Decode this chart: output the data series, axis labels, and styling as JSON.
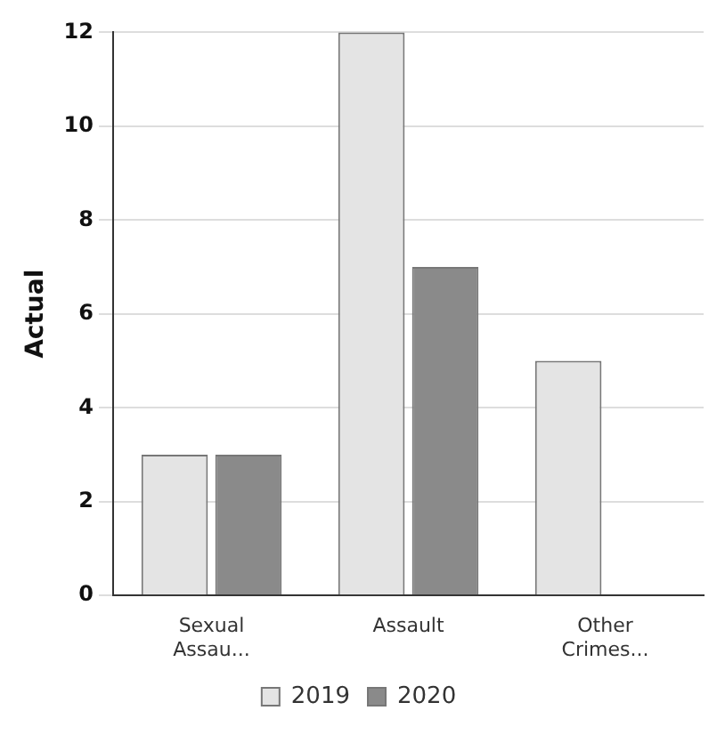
{
  "chart_data": {
    "type": "bar",
    "ylabel": "Actual",
    "categories": [
      "Sexual Assau...",
      "Assault",
      "Other Crimes..."
    ],
    "series": [
      {
        "name": "2019",
        "color": "#e4e4e4",
        "values": [
          3,
          12,
          5
        ]
      },
      {
        "name": "2020",
        "color": "#8a8a8a",
        "values": [
          3,
          7,
          0
        ]
      }
    ],
    "ylim": [
      0,
      12
    ],
    "yticks": [
      0,
      2,
      4,
      6,
      8,
      10,
      12
    ],
    "grid": "y",
    "legend": "bottom"
  }
}
